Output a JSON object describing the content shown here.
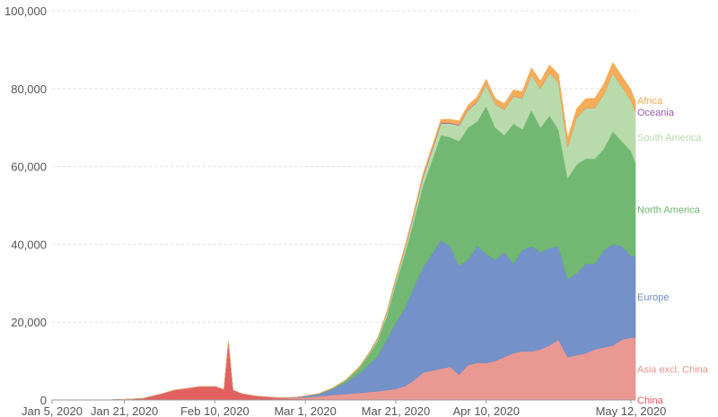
{
  "chart_data": {
    "type": "area",
    "stacked": true,
    "title": "",
    "xlabel": "",
    "ylabel": "",
    "ylim": [
      0,
      100000
    ],
    "yticks": [
      0,
      20000,
      40000,
      60000,
      80000,
      100000
    ],
    "ytick_labels": [
      "0",
      "20,000",
      "40,000",
      "60,000",
      "80,000",
      "100,000"
    ],
    "xlim": [
      "2020-01-05",
      "2020-05-13"
    ],
    "xticks": [
      "2020-01-05",
      "2020-01-21",
      "2020-02-10",
      "2020-03-01",
      "2020-03-21",
      "2020-04-10",
      "2020-05-12"
    ],
    "xtick_labels": [
      "Jan 5, 2020",
      "Jan 21, 2020",
      "Feb 10, 2020",
      "Mar 1, 2020",
      "Mar 21, 2020",
      "Apr 10, 2020",
      "May 12, 2020"
    ],
    "grid": "horizontal dashed",
    "legend": "right, labels at series end",
    "x": [
      "2020-01-05",
      "2020-01-12",
      "2020-01-18",
      "2020-01-21",
      "2020-01-25",
      "2020-01-29",
      "2020-02-01",
      "2020-02-04",
      "2020-02-07",
      "2020-02-10",
      "2020-02-12",
      "2020-02-13",
      "2020-02-14",
      "2020-02-16",
      "2020-02-19",
      "2020-02-22",
      "2020-02-25",
      "2020-02-28",
      "2020-03-01",
      "2020-03-04",
      "2020-03-07",
      "2020-03-10",
      "2020-03-13",
      "2020-03-15",
      "2020-03-17",
      "2020-03-19",
      "2020-03-21",
      "2020-03-23",
      "2020-03-25",
      "2020-03-27",
      "2020-03-29",
      "2020-03-31",
      "2020-04-02",
      "2020-04-04",
      "2020-04-06",
      "2020-04-08",
      "2020-04-10",
      "2020-04-12",
      "2020-04-14",
      "2020-04-16",
      "2020-04-18",
      "2020-04-20",
      "2020-04-22",
      "2020-04-24",
      "2020-04-26",
      "2020-04-28",
      "2020-04-30",
      "2020-05-02",
      "2020-05-04",
      "2020-05-06",
      "2020-05-08",
      "2020-05-10",
      "2020-05-12",
      "2020-05-13"
    ],
    "series": [
      {
        "name": "China",
        "color": "#e15759",
        "values": [
          0,
          0,
          50,
          150,
          400,
          1500,
          2500,
          3000,
          3500,
          3500,
          2700,
          15000,
          2500,
          1600,
          1000,
          700,
          400,
          300,
          200,
          130,
          80,
          50,
          30,
          25,
          30,
          40,
          50,
          50,
          60,
          40,
          50,
          40,
          30,
          40,
          30,
          40,
          50,
          30,
          40,
          20,
          30,
          20,
          20,
          30,
          10,
          10,
          10,
          10,
          10,
          10,
          5,
          5,
          5,
          5
        ]
      },
      {
        "name": "Asia excl. China",
        "color": "#e8928c",
        "values": [
          0,
          0,
          0,
          0,
          0,
          0,
          0,
          0,
          0,
          0,
          0,
          0,
          0,
          10,
          20,
          40,
          100,
          300,
          500,
          800,
          1200,
          1500,
          1800,
          2000,
          2200,
          2500,
          2800,
          3500,
          5000,
          7000,
          7500,
          8000,
          8500,
          6500,
          9000,
          9500,
          9500,
          10000,
          11000,
          12000,
          12500,
          12500,
          13000,
          14000,
          15500,
          11000,
          11500,
          12000,
          13000,
          13500,
          14000,
          15500,
          16000,
          16000
        ]
      },
      {
        "name": "Europe",
        "color": "#6d8cc6",
        "values": [
          0,
          0,
          0,
          0,
          0,
          0,
          0,
          0,
          0,
          0,
          0,
          0,
          0,
          0,
          0,
          0,
          30,
          100,
          300,
          600,
          1500,
          3000,
          5000,
          7000,
          9000,
          13000,
          17000,
          20000,
          24000,
          27000,
          30000,
          33000,
          31000,
          28000,
          27000,
          30000,
          28000,
          26000,
          27000,
          23000,
          26000,
          27000,
          25000,
          25000,
          24000,
          20000,
          21000,
          23000,
          22000,
          25000,
          26000,
          24000,
          21000,
          21000
        ]
      },
      {
        "name": "North America",
        "color": "#6ab46a",
        "values": [
          0,
          0,
          0,
          0,
          0,
          0,
          0,
          0,
          0,
          0,
          0,
          0,
          0,
          0,
          0,
          0,
          10,
          20,
          40,
          80,
          200,
          500,
          1500,
          2500,
          4000,
          6000,
          10000,
          14000,
          17000,
          21000,
          24000,
          27000,
          28000,
          32000,
          34000,
          32000,
          38000,
          34000,
          30000,
          36000,
          31000,
          35000,
          32000,
          34000,
          30000,
          26000,
          28000,
          27000,
          27000,
          26000,
          29000,
          27000,
          27000,
          24000
        ]
      },
      {
        "name": "South America",
        "color": "#b5d9a8",
        "values": [
          0,
          0,
          0,
          0,
          0,
          0,
          0,
          0,
          0,
          0,
          0,
          0,
          0,
          0,
          0,
          0,
          0,
          0,
          10,
          20,
          50,
          100,
          200,
          300,
          500,
          800,
          1000,
          1200,
          1500,
          2000,
          2500,
          3000,
          3500,
          4000,
          4500,
          5000,
          5500,
          6000,
          6500,
          7000,
          8000,
          9000,
          10000,
          11000,
          12000,
          8000,
          12000,
          13000,
          13000,
          14000,
          15000,
          14000,
          13000,
          13000
        ]
      },
      {
        "name": "Oceania",
        "color": "#9b59b6",
        "values": [
          0,
          0,
          0,
          0,
          0,
          0,
          0,
          0,
          0,
          0,
          0,
          0,
          0,
          0,
          0,
          0,
          0,
          0,
          0,
          5,
          10,
          20,
          40,
          60,
          80,
          100,
          150,
          200,
          250,
          300,
          300,
          250,
          200,
          150,
          150,
          100,
          80,
          60,
          50,
          40,
          30,
          20,
          20,
          20,
          20,
          15,
          15,
          10,
          10,
          10,
          10,
          10,
          10,
          10
        ]
      },
      {
        "name": "Africa",
        "color": "#f4a950",
        "values": [
          0,
          0,
          0,
          0,
          0,
          0,
          0,
          0,
          0,
          0,
          0,
          0,
          0,
          0,
          0,
          0,
          0,
          5,
          10,
          20,
          30,
          50,
          80,
          100,
          150,
          200,
          300,
          400,
          500,
          600,
          700,
          800,
          900,
          1000,
          1100,
          1200,
          1300,
          1400,
          1500,
          1600,
          1700,
          1800,
          1900,
          2000,
          2100,
          2200,
          2300,
          2400,
          2500,
          2600,
          2700,
          2700,
          2700,
          2700
        ]
      }
    ]
  }
}
